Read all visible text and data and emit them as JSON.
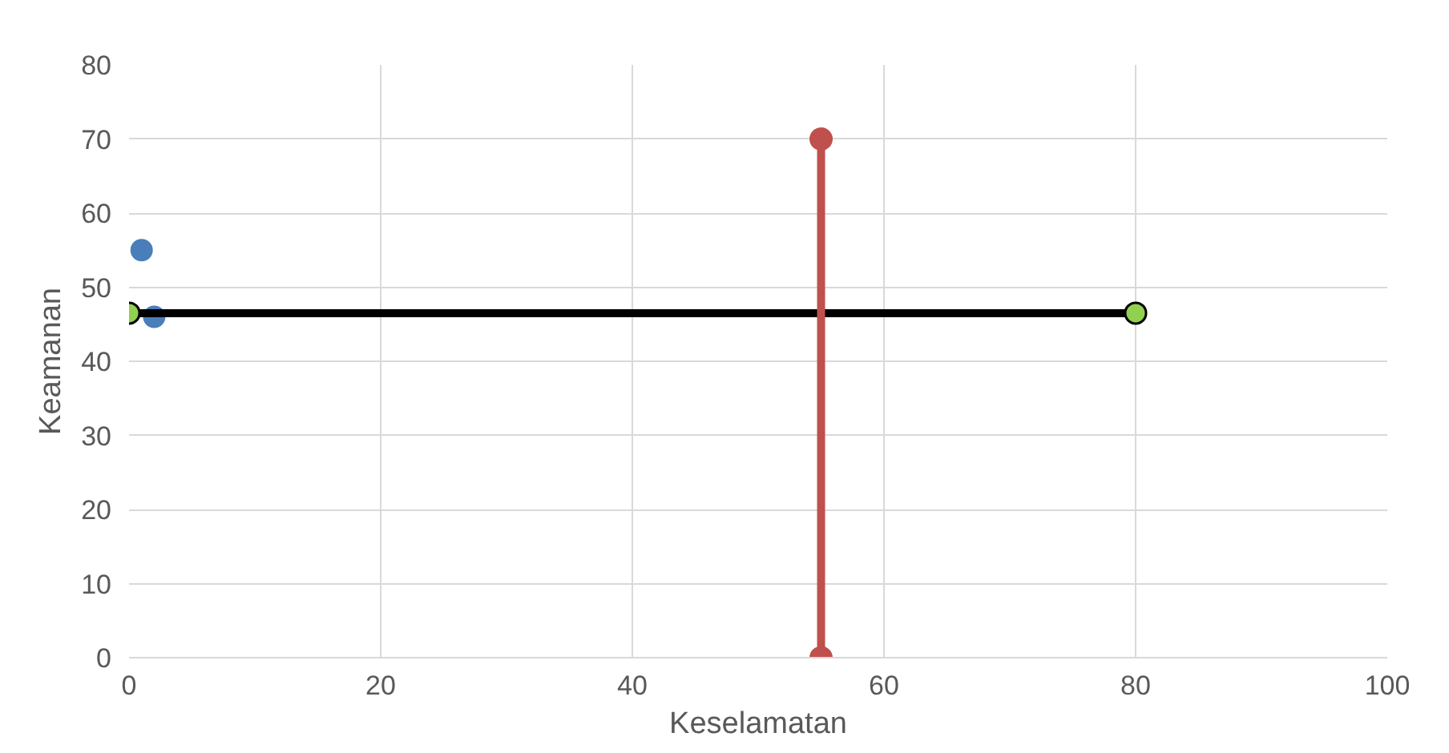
{
  "chart_data": {
    "type": "scatter",
    "xlabel": "Keselamatan",
    "ylabel": "Keamanan",
    "xlim": [
      0,
      100
    ],
    "ylim": [
      0,
      80
    ],
    "xticks": [
      0,
      20,
      40,
      60,
      80,
      100
    ],
    "yticks": [
      0,
      10,
      20,
      30,
      40,
      50,
      60,
      70,
      80
    ],
    "grid": true,
    "marker": "circle",
    "series": [
      {
        "color": "#4a7ebb",
        "x": [
          1,
          2
        ],
        "values": [
          55,
          46
        ]
      },
      {
        "type": "line",
        "color": "#000000",
        "colors": [
          "#92d050",
          "#92d050"
        ],
        "x": [
          0,
          80
        ],
        "values": [
          46.5,
          46.5
        ]
      },
      {
        "type": "line",
        "color": "#c0504d",
        "x": [
          55,
          55
        ],
        "values": [
          0,
          70
        ]
      }
    ]
  }
}
